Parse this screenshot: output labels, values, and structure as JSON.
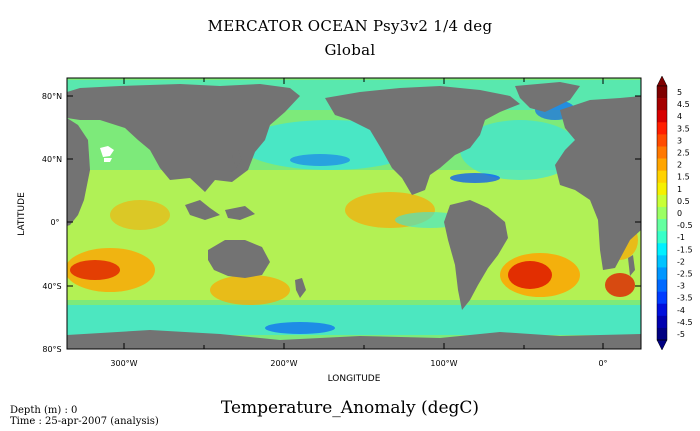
{
  "title": "MERCATOR OCEAN Psy3v2 1/4 deg",
  "subtitle": "Global",
  "variable_title": "Temperature_Anomaly (degC)",
  "depth_line": "Depth (m) : 0",
  "time_line": "Time : 25-apr-2007 (analysis)",
  "axes": {
    "ylabel": "LATITUDE",
    "xlabel": "LONGITUDE",
    "lat_ticks": [
      "80°N",
      "40°N",
      "0°",
      "40°S",
      "80°S"
    ],
    "lon_ticks": [
      "300°W",
      "200°W",
      "100°W",
      "0°"
    ]
  },
  "colorbar": {
    "labels": [
      "5",
      "4.5",
      "4",
      "3.5",
      "3",
      "2.5",
      "2",
      "1.5",
      "1",
      "0.5",
      "0",
      "-0.5",
      "-1",
      "-1.5",
      "-2",
      "-2.5",
      "-3",
      "-3.5",
      "-4",
      "-4.5",
      "-5"
    ],
    "colors": [
      "#7f0000",
      "#a50000",
      "#d70000",
      "#ff1e00",
      "#ff4b00",
      "#ff7800",
      "#ffa500",
      "#ffd200",
      "#f6f000",
      "#c8ff37",
      "#9bff64",
      "#64ffa0",
      "#37ffc8",
      "#00f0ff",
      "#00c3ff",
      "#0096ff",
      "#0069ff",
      "#003cff",
      "#000fdc",
      "#0000af",
      "#000082"
    ]
  },
  "colors": {
    "land": "#737373",
    "ocean_base": "#7dea7a",
    "neutral_ocean": "#b9f250",
    "warm": "#ffa500",
    "hot": "#e02000",
    "cool": "#3ce6d8",
    "cold": "#0050ff",
    "ice": "#ffffff"
  }
}
